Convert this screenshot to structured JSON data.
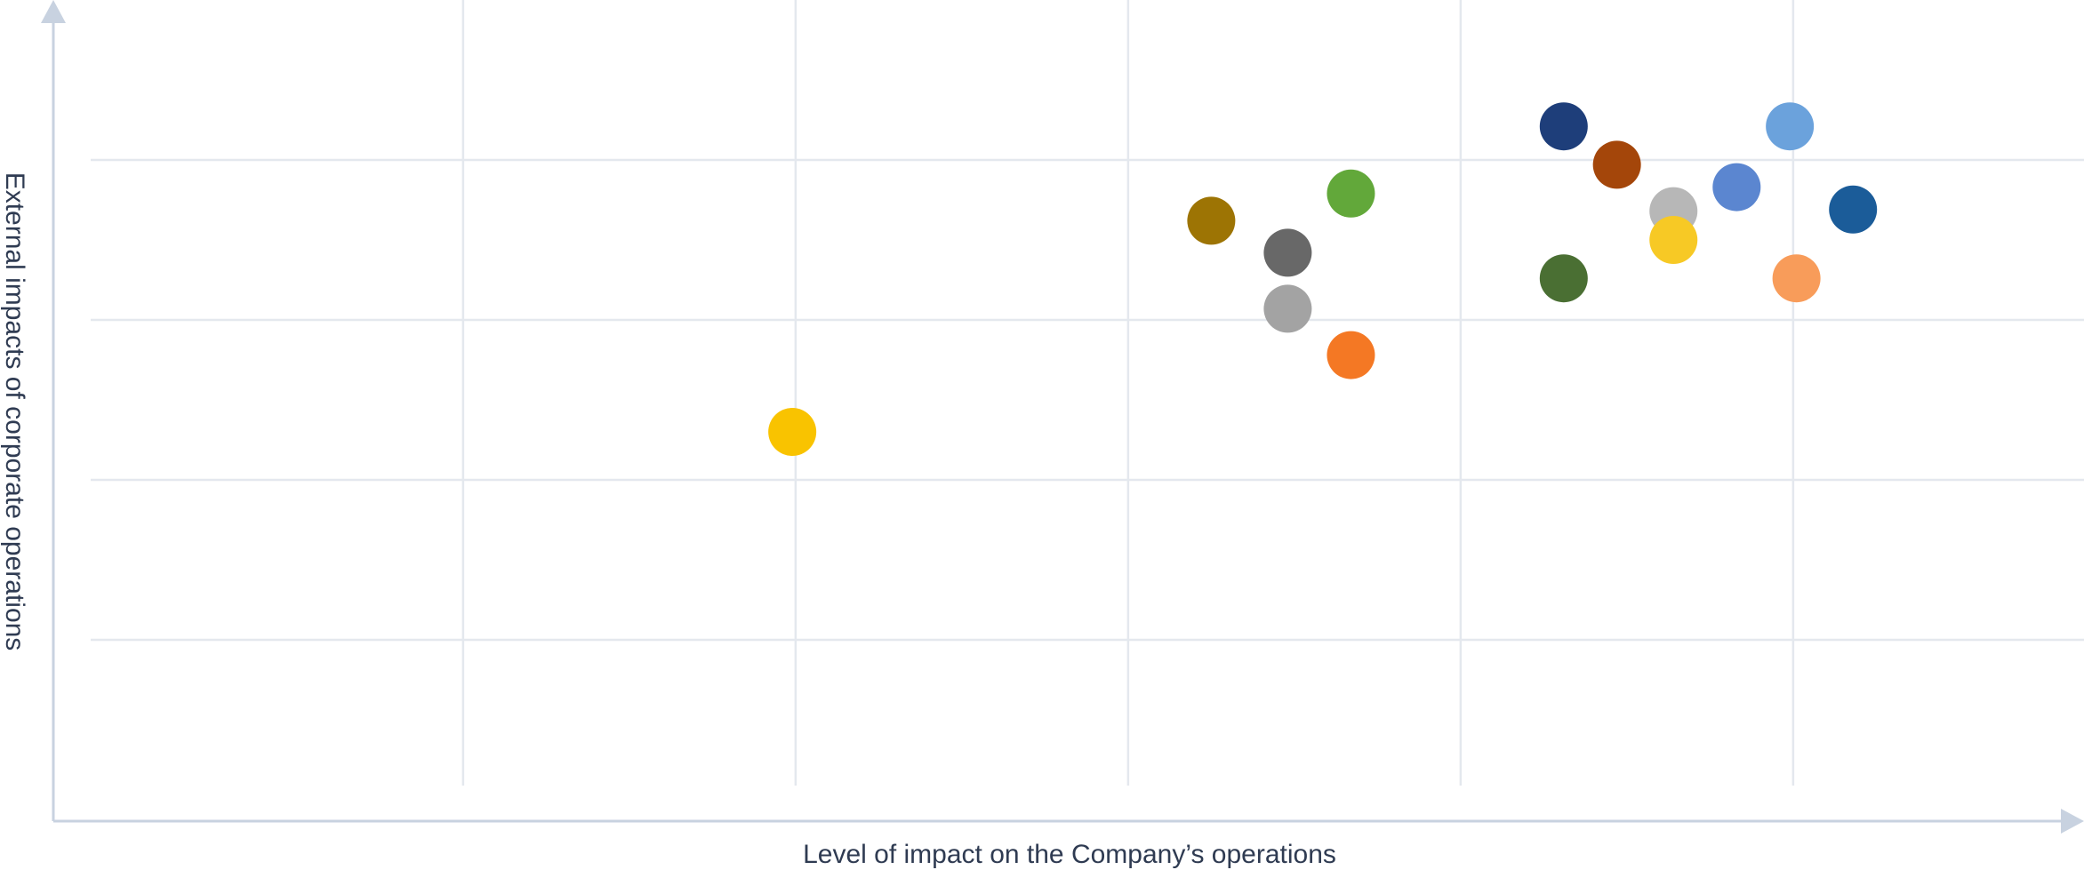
{
  "chart_data": {
    "type": "scatter",
    "title": "",
    "xlabel": "Level of impact on the Company’s operations",
    "ylabel": "External impacts of corporate operations",
    "xlim": [
      0,
      6
    ],
    "ylim": [
      0,
      5
    ],
    "grid": true,
    "x_gridlines": [
      1.12,
      2.12,
      3.12,
      4.12,
      5.12
    ],
    "y_gridlines": [
      1,
      2,
      3,
      4
    ],
    "points": [
      {
        "x": 2.11,
        "y": 2.3,
        "color": "#f9c300"
      },
      {
        "x": 3.37,
        "y": 3.62,
        "color": "#9d7404"
      },
      {
        "x": 3.6,
        "y": 3.42,
        "color": "#686868"
      },
      {
        "x": 3.6,
        "y": 3.07,
        "color": "#a3a3a3"
      },
      {
        "x": 3.79,
        "y": 3.79,
        "color": "#62a83a"
      },
      {
        "x": 3.79,
        "y": 2.78,
        "color": "#f47824"
      },
      {
        "x": 4.43,
        "y": 4.21,
        "color": "#1e3e7a"
      },
      {
        "x": 4.43,
        "y": 3.26,
        "color": "#4a6f33"
      },
      {
        "x": 4.59,
        "y": 3.97,
        "color": "#a4460a"
      },
      {
        "x": 4.76,
        "y": 3.68,
        "color": "#b7b7b7"
      },
      {
        "x": 4.76,
        "y": 3.5,
        "color": "#f7c925"
      },
      {
        "x": 4.95,
        "y": 3.83,
        "color": "#5b86d0"
      },
      {
        "x": 5.11,
        "y": 4.21,
        "color": "#6ba2dc"
      },
      {
        "x": 5.13,
        "y": 3.26,
        "color": "#f89c5a"
      },
      {
        "x": 5.3,
        "y": 3.69,
        "color": "#1b5c99"
      }
    ]
  }
}
